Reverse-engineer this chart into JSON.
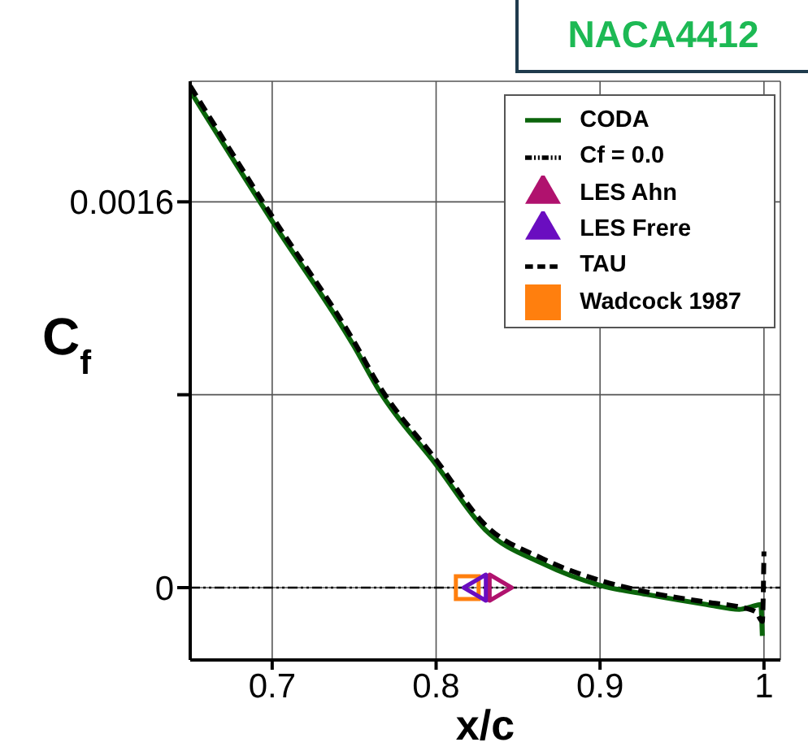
{
  "chart_data": {
    "type": "line",
    "title": "NACA4412",
    "xlabel": "x/c",
    "ylabel": "C$_{f}$",
    "xlim": [
      0.65,
      1.01
    ],
    "ylim": [
      -0.0003,
      0.0021
    ],
    "xticks": [
      0.7,
      0.8,
      0.9,
      1
    ],
    "yticks": [
      0,
      {
        "value": 0.0008,
        "label": null
      },
      0.0016
    ],
    "grid": true,
    "legend": "top right",
    "series": [
      {
        "name": "Cf = 0.0",
        "color": "#000000",
        "line_style": "dotted",
        "x": [
          0.65,
          1.01
        ],
        "values": [
          0,
          0
        ]
      },
      {
        "name": "CODA",
        "color": "#0b640b",
        "line_style": "solid",
        "x": [
          0.65,
          0.7,
          0.75,
          0.765,
          0.8,
          0.83,
          0.865,
          0.9,
          0.93,
          0.965,
          0.985,
          0.992,
          0.998,
          0.999
        ],
        "values": [
          0.00206,
          0.00152,
          0.001,
          0.00082,
          0.00051,
          0.00024,
          0.0001,
          1e-05,
          -3e-05,
          -7e-05,
          -9e-05,
          -8e-05,
          -7e-05,
          -0.0002
        ]
      },
      {
        "name": "TAU",
        "color": "#000000",
        "line_style": "dashed",
        "x": [
          0.65,
          0.7,
          0.75,
          0.765,
          0.8,
          0.83,
          0.865,
          0.9,
          0.93,
          0.965,
          0.985,
          0.995,
          0.999,
          1.0
        ],
        "values": [
          0.00208,
          0.00154,
          0.00102,
          0.00084,
          0.00053,
          0.00026,
          0.00012,
          3e-05,
          -2e-05,
          -6e-05,
          -8e-05,
          -0.0001,
          -0.00014,
          0.00015
        ]
      },
      {
        "name": "LES Ahn",
        "type": "scatter",
        "color": "#b0126e",
        "marker": "triangle",
        "x": [
          0.839
        ],
        "values": [
          0
        ]
      },
      {
        "name": "Wadcock 1987",
        "type": "scatter",
        "color": "#ff7f0e",
        "marker": "square",
        "x": [
          0.819
        ],
        "values": [
          0
        ]
      },
      {
        "name": "LES Frere",
        "type": "scatter",
        "color": "#6a0dc0",
        "marker": "triangle",
        "x": [
          0.824
        ],
        "values": [
          0
        ]
      }
    ]
  }
}
